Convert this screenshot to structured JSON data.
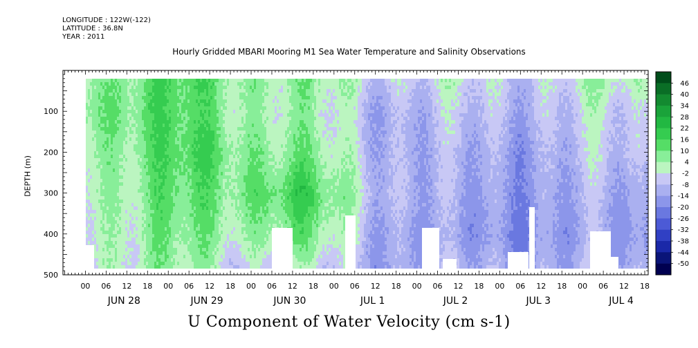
{
  "header": {
    "longitude": "LONGITUDE : 122W(-122)",
    "latitude": "LATITUDE : 36.8N",
    "year": "YEAR : 2011"
  },
  "chart_data": {
    "type": "heatmap",
    "title": "Hourly Gridded MBARI Mooring M1 Sea Water Temperature and Salinity Observations",
    "xlabel": "U Component of Water Velocity (cm s-1)",
    "ylabel": "DEPTH (m)",
    "ylim": [
      500,
      0
    ],
    "y_ticks": [
      100,
      200,
      300,
      400,
      500
    ],
    "y_tick_labels": [
      "100",
      "200",
      "300",
      "400",
      "500"
    ],
    "x_days": [
      "JUN 28",
      "JUN 29",
      "JUN 30",
      "JUL  1",
      "JUL  2",
      "JUL  3",
      "JUL  4"
    ],
    "x_hour_labels": [
      "00",
      "06",
      "12",
      "18",
      "00",
      "06",
      "12",
      "18",
      "00",
      "06",
      "12",
      "18",
      "00",
      "06",
      "12",
      "18",
      "00",
      "06",
      "12",
      "18",
      "00",
      "06",
      "12",
      "18",
      "00",
      "06",
      "12",
      "18"
    ],
    "colorbar": {
      "labels": [
        "46",
        "40",
        "34",
        "28",
        "22",
        "16",
        "10",
        "4",
        "-2",
        "-8",
        "-14",
        "-20",
        "-26",
        "-32",
        "-38",
        "-44",
        "-50"
      ],
      "colors": [
        "#004d1a",
        "#0a6e26",
        "#138a30",
        "#1aa33a",
        "#22b842",
        "#35cc50",
        "#55dd66",
        "#88ee99",
        "#bbf5c0",
        "#c8c8f5",
        "#aab0f0",
        "#8c96ea",
        "#6a78e0",
        "#4c5ad6",
        "#3040c4",
        "#1a28a8",
        "#0a1478",
        "#000050"
      ]
    },
    "depth_series": [
      {
        "name": "JUN 28",
        "values": [
          10,
          12,
          8,
          6,
          4,
          2
        ]
      },
      {
        "name": "JUN 29",
        "values": [
          12,
          10,
          14,
          10,
          6,
          0
        ]
      },
      {
        "name": "JUN 30",
        "values": [
          4,
          2,
          6,
          16,
          8,
          -8
        ]
      },
      {
        "name": "JUL  1",
        "values": [
          0,
          -8,
          -6,
          -4,
          -8,
          -10
        ]
      },
      {
        "name": "JUL  2",
        "values": [
          -4,
          -10,
          -14,
          -16,
          -18,
          -12
        ]
      },
      {
        "name": "JUL  3",
        "values": [
          -2,
          -6,
          -10,
          -12,
          -14,
          -10
        ]
      },
      {
        "name": "JUL  4",
        "values": [
          2,
          -6,
          -8,
          -14,
          -16,
          -12
        ]
      }
    ]
  }
}
